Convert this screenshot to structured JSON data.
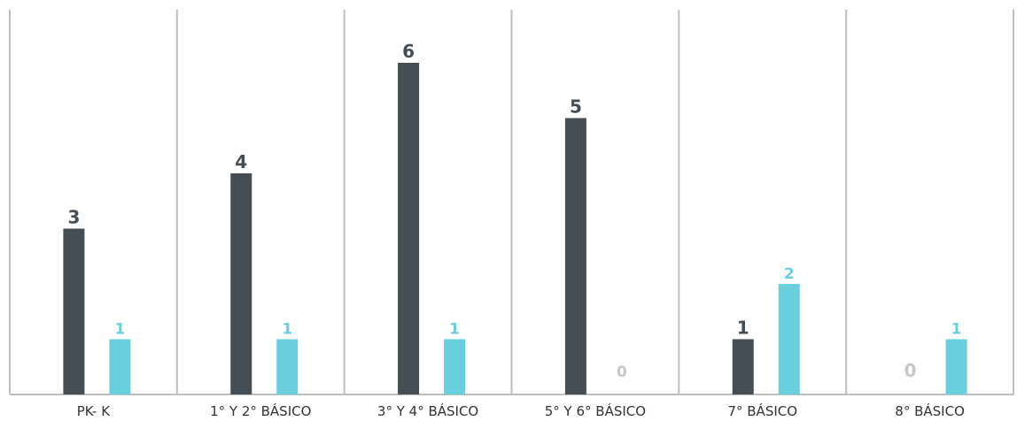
{
  "chart_data": {
    "type": "bar",
    "title": "",
    "xlabel": "",
    "ylabel": "",
    "grid": false,
    "legend": "none",
    "ylim": [
      0,
      6
    ],
    "categories": [
      "PK- K",
      "1° Y 2° BÁSICO",
      "3° Y 4° BÁSICO",
      "5° Y 6° BÁSICO",
      "7° BÁSICO",
      "8° BÁSICO"
    ],
    "series": [
      {
        "values": [
          3,
          4,
          6,
          5,
          1,
          null
        ],
        "labels": [
          "3",
          "4",
          "6",
          "5",
          "1",
          "0"
        ],
        "color": "#454d55"
      },
      {
        "values": [
          1,
          1,
          1,
          null,
          2,
          1
        ],
        "labels": [
          "1",
          "1",
          "1",
          "0",
          "2",
          "1"
        ],
        "color": "#69cfdc"
      }
    ],
    "zero_label_color": "#c8c8c8",
    "divider_color": "#bfbfbf"
  }
}
